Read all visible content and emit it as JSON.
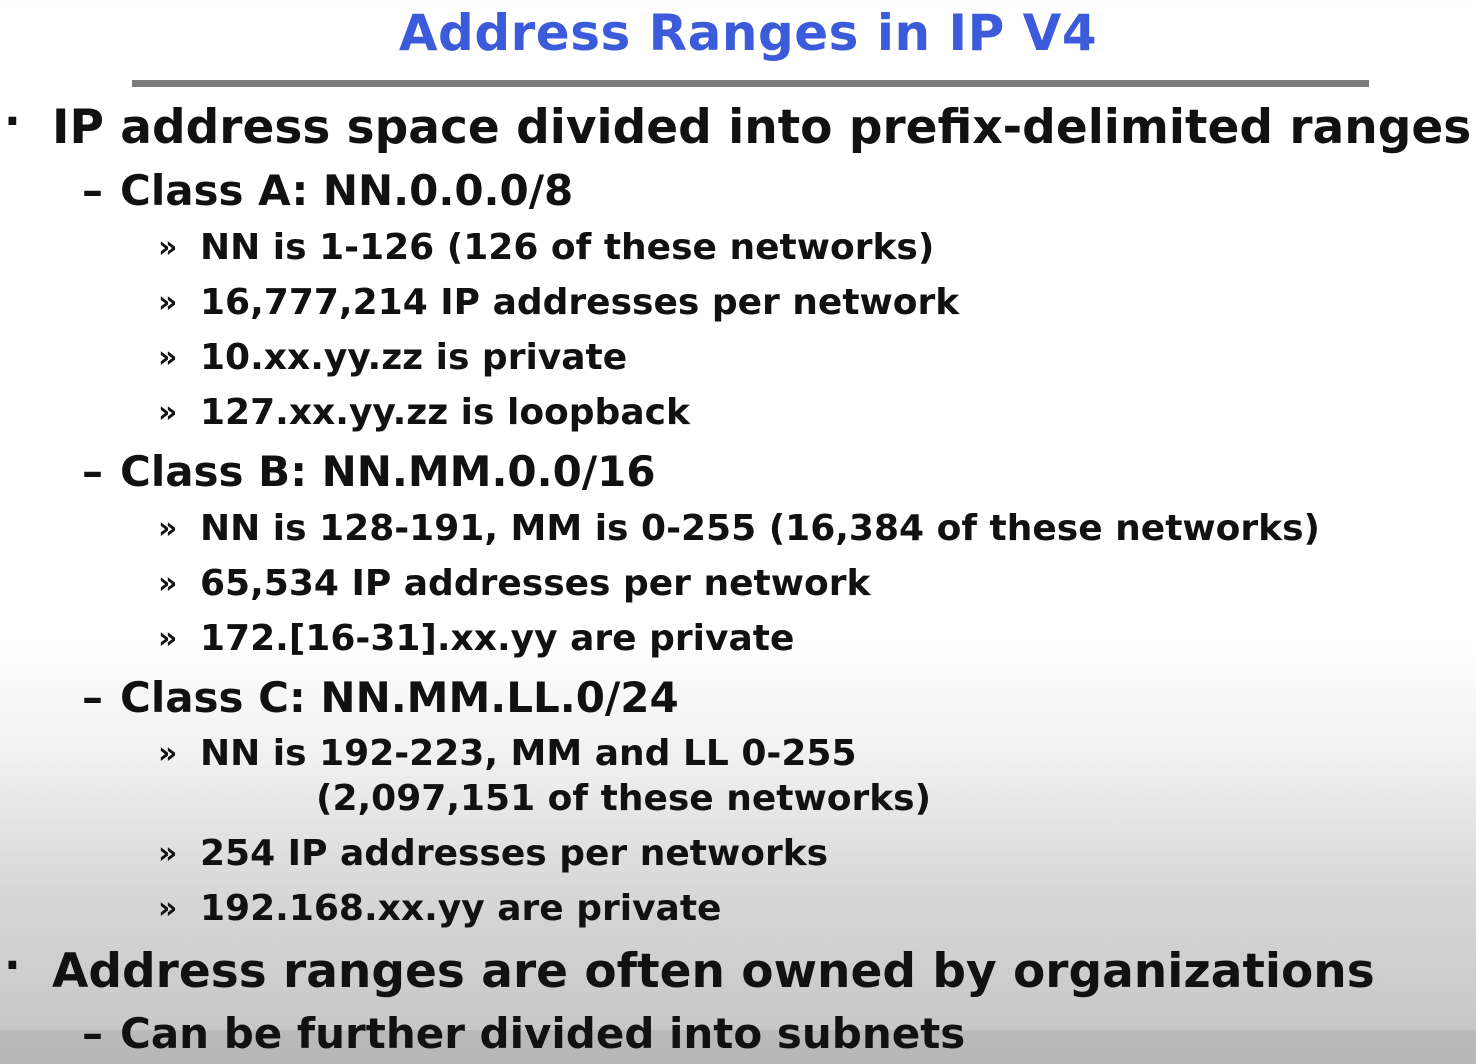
{
  "slide": {
    "title": "Address Ranges in IP V4",
    "bullet_marker": "·",
    "sub_marker": "–",
    "subsub_marker": "»",
    "bullets": [
      {
        "text": "IP address space divided into prefix-delimited ranges:",
        "subs": [
          {
            "text": "Class A: NN.0.0.0/8",
            "items": [
              "NN is 1-126 (126 of these networks)",
              "16,777,214 IP addresses per network",
              "10.xx.yy.zz is private",
              "127.xx.yy.zz is loopback"
            ]
          },
          {
            "text": "Class B: NN.MM.0.0/16",
            "items": [
              "NN is 128-191, MM is 0-255 (16,384 of these networks)",
              "65,534 IP addresses per network",
              "172.[16-31].xx.yy are private"
            ]
          },
          {
            "text": "Class C: NN.MM.LL.0/24",
            "items": [
              "NN is 192-223, MM and LL 0-255",
              "(2,097,151 of these networks)",
              "254 IP addresses per networks",
              "192.168.xx.yy are private"
            ]
          }
        ]
      },
      {
        "text": "Address ranges are often owned by organizations",
        "subs": [
          {
            "text": "Can be further divided into subnets"
          }
        ]
      }
    ]
  }
}
